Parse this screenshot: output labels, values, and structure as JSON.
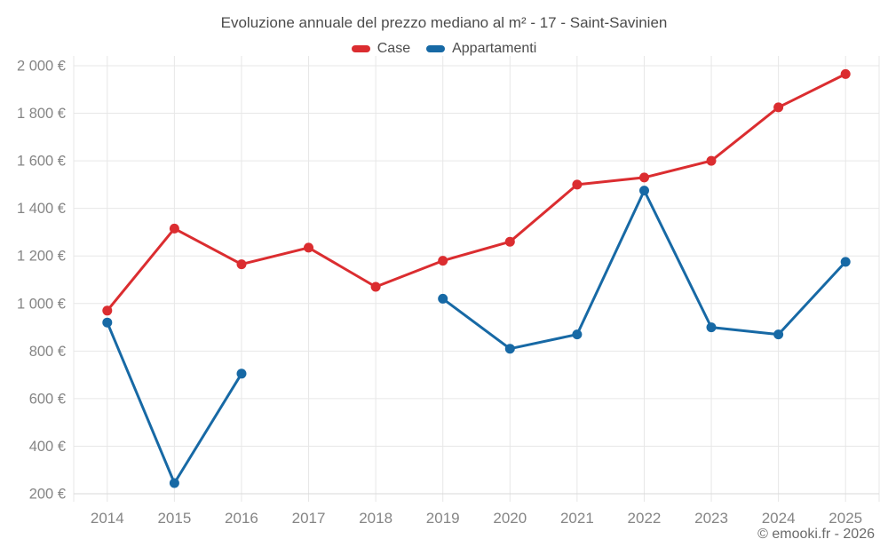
{
  "title": "Evoluzione annuale del prezzo mediano al m² - 17 - Saint-Savinien",
  "footer": "© emooki.fr - 2026",
  "legend": {
    "items": [
      {
        "label": "Case",
        "color": "#db2d30"
      },
      {
        "label": "Appartamenti",
        "color": "#1769a5"
      }
    ]
  },
  "colors": {
    "grid": "#e7e7e7",
    "axis_line": "#d9d9d9",
    "tick_text": "#858585",
    "title_text": "#4c4c4c",
    "footer_text": "#6b6b6b"
  },
  "chart_data": {
    "type": "line",
    "title": "Evoluzione annuale del prezzo mediano al m² - 17 - Saint-Savinien",
    "xlabel": "",
    "ylabel": "",
    "yaxis_format": "{value} €",
    "ylim": [
      200,
      2000
    ],
    "ytick_step": 200,
    "grid": true,
    "legend_position": "top",
    "categories": [
      "2014",
      "2015",
      "2016",
      "2017",
      "2018",
      "2019",
      "2020",
      "2021",
      "2022",
      "2023",
      "2024",
      "2025"
    ],
    "series": [
      {
        "name": "Case",
        "color": "#db2d30",
        "values": [
          970,
          1315,
          1165,
          1235,
          1070,
          1180,
          1260,
          1500,
          1530,
          1600,
          1825,
          1965
        ]
      },
      {
        "name": "Appartamenti",
        "color": "#1769a5",
        "values": [
          920,
          245,
          705,
          null,
          null,
          1020,
          810,
          870,
          1475,
          900,
          870,
          1175
        ]
      }
    ]
  }
}
